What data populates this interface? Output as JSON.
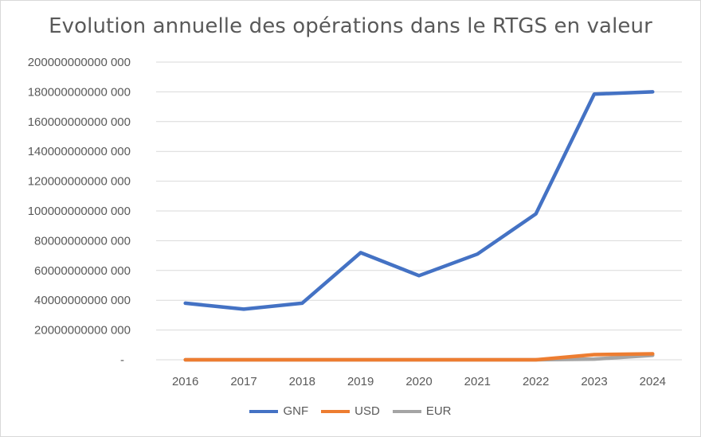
{
  "chart_data": {
    "type": "line",
    "title": "Evolution annuelle des opérations dans le RTGS en valeur",
    "xlabel": "",
    "ylabel": "",
    "categories": [
      "2016",
      "2017",
      "2018",
      "2019",
      "2020",
      "2021",
      "2022",
      "2023",
      "2024"
    ],
    "ylim": [
      0,
      200000000000000
    ],
    "yticks": [
      0,
      20000000000000,
      40000000000000,
      60000000000000,
      80000000000000,
      100000000000000,
      120000000000000,
      140000000000000,
      160000000000000,
      180000000000000,
      200000000000000
    ],
    "ytick_labels": [
      "-",
      "20000000000 000",
      "40000000000 000",
      "60000000000 000",
      "80000000000 000",
      "100000000000 000",
      "120000000000 000",
      "140000000000 000",
      "160000000000 000",
      "180000000000 000",
      "200000000000 000"
    ],
    "grid": true,
    "legend_position": "bottom",
    "series": [
      {
        "name": "GNF",
        "color": "#4472c4",
        "values": [
          38000000000000,
          34000000000000,
          38000000000000,
          72000000000000,
          56500000000000,
          71000000000000,
          98000000000000,
          178500000000000,
          180000000000000
        ]
      },
      {
        "name": "USD",
        "color": "#ed7d31",
        "values": [
          0,
          0,
          0,
          0,
          0,
          0,
          0,
          3500000000000,
          4000000000000
        ]
      },
      {
        "name": "EUR",
        "color": "#a5a5a5",
        "values": [
          0,
          0,
          0,
          0,
          0,
          0,
          0,
          500000000000,
          3000000000000
        ]
      }
    ]
  }
}
